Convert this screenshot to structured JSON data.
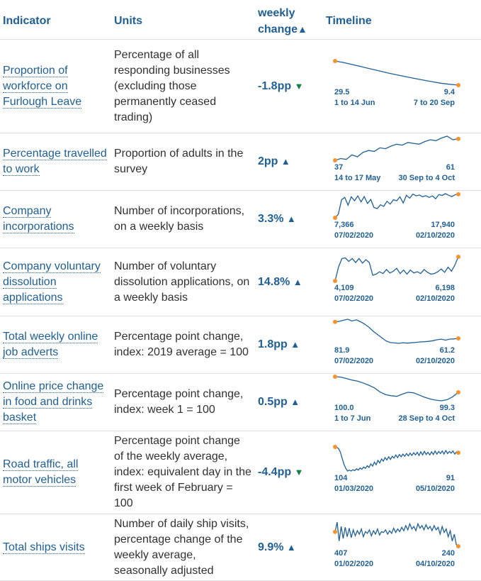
{
  "header": {
    "indicator": "Indicator",
    "units": "Units",
    "change_line1": "weekly",
    "change_line2": "change",
    "change_arrow": "▲",
    "timeline": "Timeline"
  },
  "rows": [
    {
      "indicator": "Proportion of workforce on Furlough Leave",
      "units": "Percentage of all responding businesses (excluding those permanently ceased trading)",
      "change": "-1.8pp",
      "direction": "down",
      "arrow": "▼",
      "start_value": "29.5",
      "end_value": "9.4",
      "start_label": "1 to 14 Jun",
      "end_label": "7 to 20 Sep",
      "series": [
        29.5,
        28.2,
        26.5,
        24.8,
        23,
        21.3,
        19.5,
        18,
        16.5,
        15,
        13.6,
        12.3,
        11,
        10.1,
        9.4
      ]
    },
    {
      "indicator": "Percentage travelled to work",
      "units": "Proportion of adults in the survey",
      "change": "2pp",
      "direction": "up",
      "arrow": "▲",
      "start_value": "37",
      "end_value": "61",
      "start_label": "14 to 17 May",
      "end_label": "30 Sep to 4 Oct",
      "series": [
        37,
        39,
        38,
        43,
        41,
        46,
        48,
        47,
        51,
        50,
        53,
        55,
        54,
        57,
        56,
        55,
        58,
        60,
        59,
        62,
        64,
        60,
        61
      ]
    },
    {
      "indicator": "Company incorporations",
      "units": "Number of incorporations, on a weekly basis",
      "change": "3.3%",
      "direction": "up",
      "arrow": "▲",
      "start_value": "7,366",
      "end_value": "17,940",
      "start_label": "07/02/2020",
      "end_label": "02/10/2020",
      "series": [
        7366,
        9000,
        15500,
        16500,
        13000,
        16800,
        15000,
        17200,
        14500,
        16900,
        13800,
        15600,
        12000,
        11500,
        13200,
        12500,
        14800,
        13500,
        15500,
        15000,
        16800,
        14000,
        17500,
        16200,
        18000,
        17200,
        17600,
        16800,
        17300,
        16500,
        17200,
        15900,
        17800,
        17400,
        18200,
        17500,
        16900,
        17700,
        17940
      ]
    },
    {
      "indicator": "Company voluntary dissolution applications",
      "units": "Number of voluntary dissolution applications, on a weekly basis",
      "change": "14.8%",
      "direction": "up",
      "arrow": "▲",
      "start_value": "4,109",
      "end_value": "6,198",
      "start_label": "07/02/2020",
      "end_label": "02/10/2020",
      "series": [
        4109,
        5300,
        6050,
        6100,
        5800,
        6050,
        5700,
        6050,
        5650,
        5950,
        5700,
        4600,
        4700,
        4900,
        4750,
        5100,
        4800,
        4950,
        5200,
        4750,
        5050,
        4700,
        5050,
        4800,
        4900,
        4750,
        5100,
        4850,
        4700,
        4750,
        4900,
        5150,
        4850,
        5300,
        4950,
        5500,
        6198
      ]
    },
    {
      "indicator": "Total weekly online job adverts",
      "units": "Percentage point change, index: 2019 average = 100",
      "change": "1.8pp",
      "direction": "up",
      "arrow": "▲",
      "start_value": "81.9",
      "end_value": "61.2",
      "start_label": "07/02/2020",
      "end_label": "02/10/2020",
      "series": [
        81.9,
        82.5,
        84,
        85.2,
        83,
        84.5,
        82,
        79,
        75,
        70,
        66,
        62,
        58,
        56,
        55.5,
        55,
        55.8,
        55.3,
        55.7,
        56.2,
        56.8,
        57,
        57.5,
        58.3,
        59.5,
        60.2,
        59,
        60.3,
        60.6,
        61.2
      ]
    },
    {
      "indicator": "Online price change in food and drinks basket",
      "units": "Percentage point change, index: week 1 = 100",
      "change": "0.5pp",
      "direction": "up",
      "arrow": "▲",
      "start_value": "100.0",
      "end_value": "99.3",
      "start_label": "1 to 7 Jun",
      "end_label": "28 Sep to 4 Oct",
      "series": [
        100,
        99.98,
        99.92,
        99.85,
        99.8,
        99.72,
        99.62,
        99.5,
        99.32,
        99.2,
        99.15,
        99.12,
        99.22,
        99.3,
        99.28,
        99.18,
        99.08,
        99.0,
        98.95,
        98.92,
        98.97,
        99.1,
        99.3
      ]
    },
    {
      "indicator": "Road traffic, all motor vehicles",
      "units": "Percentage point change of the weekly average, index: equivalent day in the first week of February = 100",
      "change": "-4.4pp",
      "direction": "down",
      "arrow": "▼",
      "start_value": "104",
      "end_value": "91",
      "start_label": "01/03/2020",
      "end_label": "05/10/2020",
      "series": [
        104,
        103,
        100,
        92,
        78,
        65,
        56,
        50,
        52,
        50,
        53,
        51,
        55,
        52,
        57,
        54,
        59,
        56,
        62,
        58,
        66,
        61,
        70,
        64,
        74,
        68,
        77,
        72,
        80,
        75,
        82,
        76,
        83,
        79,
        86,
        80,
        87,
        82,
        88,
        83,
        89,
        84,
        90,
        85,
        91,
        86,
        92,
        85,
        93,
        86,
        94,
        87,
        92,
        86,
        93,
        87,
        95,
        88,
        94,
        89,
        95,
        88,
        96,
        89,
        94,
        90,
        95,
        88,
        93,
        91
      ]
    },
    {
      "indicator": "Total ships visits",
      "units": "Number of daily ship visits, percentage change of the weekly average, seasonally adjusted",
      "change": "9.9%",
      "direction": "up",
      "arrow": "▲",
      "start_value": "407",
      "end_value": "240",
      "start_label": "01/02/2020",
      "end_label": "04/10/2020",
      "series": [
        407,
        520,
        300,
        470,
        330,
        460,
        350,
        450,
        340,
        430,
        360,
        420,
        380,
        440,
        350,
        410,
        390,
        430,
        360,
        420,
        380,
        440,
        370,
        410,
        400,
        430,
        380,
        420,
        390,
        450,
        400,
        440,
        410,
        460,
        420,
        480,
        430,
        500,
        440,
        470,
        420,
        500,
        450,
        480,
        430,
        490,
        440,
        470,
        420,
        480,
        430,
        460,
        380,
        470,
        400,
        440,
        350,
        420,
        300,
        380,
        260,
        240
      ]
    }
  ],
  "colors": {
    "link": "#206095",
    "text": "#323132",
    "up_arrow": "#206095",
    "down_arrow": "#0f8243",
    "line": "#206095",
    "endpoint": "#f39431",
    "border": "#e0e0e0"
  }
}
